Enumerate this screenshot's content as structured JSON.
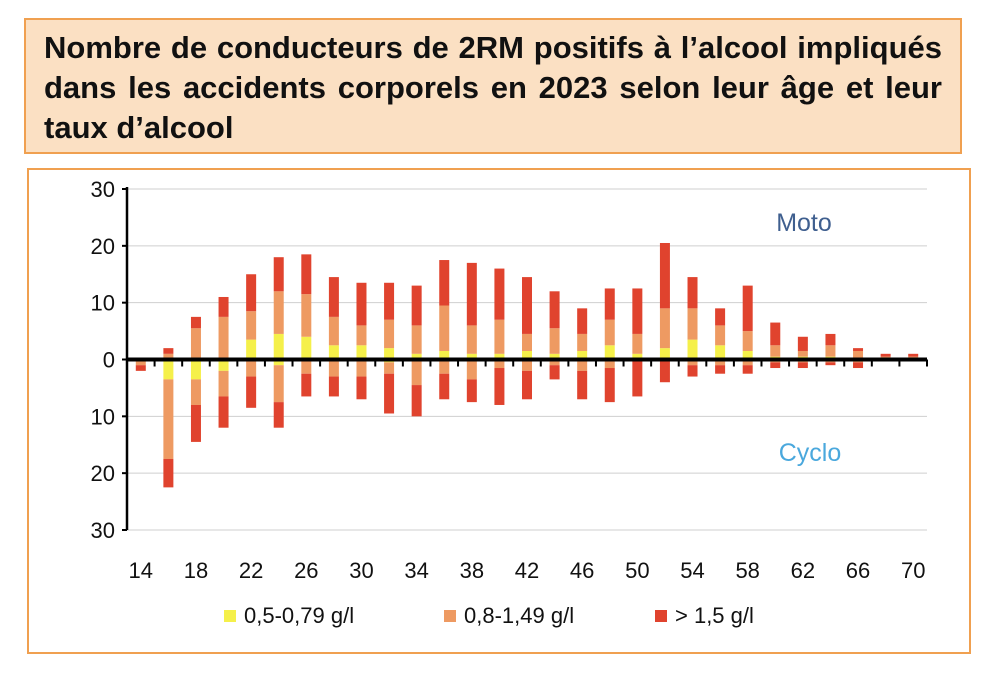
{
  "title": "Nombre de conducteurs de 2RM positifs à l’alcool impliqués dans les accidents corporels en 2023 selon leur âge et leur taux d’alcool",
  "colors": {
    "low": "#f5f04a",
    "mid": "#ee9a62",
    "high": "#e0432e",
    "moto_label": "#3f5f8f",
    "cyclo_label": "#4aa8dd",
    "frame": "#f0a050",
    "title_bg": "#fbe0c3"
  },
  "chart_data": {
    "type": "bar",
    "stacked": true,
    "diverging": true,
    "annotations": {
      "top": "Moto",
      "bottom": "Cyclo"
    },
    "y_ticks": [
      "30",
      "20",
      "10",
      "0",
      "10",
      "20",
      "30"
    ],
    "ylim": [
      -30,
      30
    ],
    "grid": true,
    "legend_position": "bottom",
    "series_names": [
      "0,5-0,79 g/l",
      "0,8-1,49 g/l",
      "> 1,5 g/l"
    ],
    "x_tick_labels": [
      "14",
      "18",
      "22",
      "26",
      "30",
      "34",
      "38",
      "42",
      "46",
      "50",
      "54",
      "58",
      "62",
      "66",
      "70"
    ],
    "categories": [
      "14",
      "16",
      "18",
      "20",
      "22",
      "24",
      "26",
      "28",
      "30",
      "32",
      "34",
      "36",
      "38",
      "40",
      "42",
      "44",
      "46",
      "48",
      "50",
      "52",
      "54",
      "56",
      "58",
      "60",
      "62",
      "64",
      "66",
      "68",
      "70"
    ],
    "moto": {
      "low": [
        0,
        0,
        0,
        0,
        3.5,
        4.5,
        4,
        2.5,
        2.5,
        2,
        1,
        1.5,
        1,
        1,
        1.5,
        1,
        1.5,
        2.5,
        1,
        2,
        3.5,
        2.5,
        1.5,
        0.5,
        0.5,
        0.5,
        0,
        0,
        0
      ],
      "mid": [
        0,
        1,
        5.5,
        7.5,
        5,
        7.5,
        7.5,
        5,
        3.5,
        5,
        5,
        8,
        5,
        6,
        3,
        4.5,
        3,
        4.5,
        3.5,
        7,
        5.5,
        3.5,
        3.5,
        2,
        1,
        2,
        1.5,
        0.5,
        0.5
      ],
      "high": [
        0,
        1,
        2,
        3.5,
        6.5,
        6,
        7,
        7,
        7.5,
        6.5,
        7,
        8,
        11,
        9,
        10,
        6.5,
        4.5,
        5.5,
        8,
        11.5,
        5.5,
        3,
        8,
        4,
        2.5,
        2,
        0.5,
        0.5,
        0.5
      ]
    },
    "cyclo": {
      "low": [
        0,
        3.5,
        3.5,
        2,
        0,
        1,
        0,
        0,
        0,
        0.5,
        0,
        0,
        0,
        0,
        0,
        0,
        0,
        0,
        0,
        0,
        0,
        0,
        0,
        0,
        0,
        0,
        0,
        0,
        0
      ],
      "mid": [
        1,
        14,
        4.5,
        4.5,
        3,
        6.5,
        2.5,
        3,
        3,
        2,
        4.5,
        2.5,
        3.5,
        1.5,
        2,
        1,
        2,
        1.5,
        0,
        0,
        1,
        1,
        1,
        0.5,
        0.5,
        0.5,
        0.5,
        0,
        0
      ],
      "high": [
        1,
        5,
        6.5,
        5.5,
        5.5,
        4.5,
        4,
        3.5,
        4,
        7,
        5.5,
        4.5,
        4,
        6.5,
        5,
        2.5,
        5,
        6,
        6.5,
        4,
        2,
        1.5,
        1.5,
        1,
        1,
        0.5,
        1,
        0,
        0
      ]
    }
  }
}
